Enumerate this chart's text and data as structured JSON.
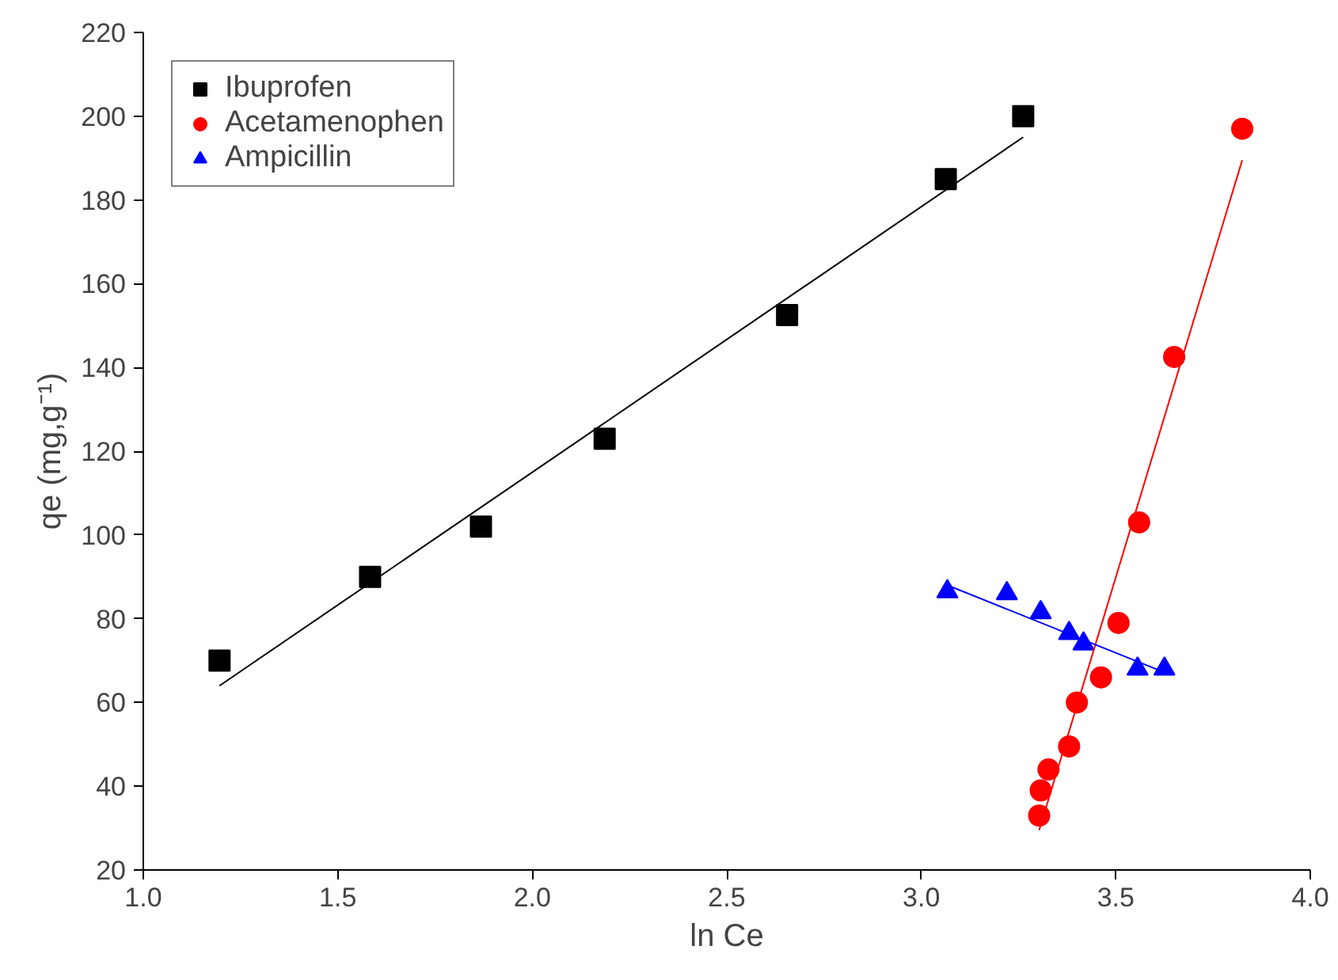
{
  "chart_data": {
    "type": "scatter",
    "xlabel": "ln Ce",
    "ylabel": "qe (mg,g⁻¹)",
    "xlim": [
      1.0,
      4.0
    ],
    "ylim": [
      20,
      220
    ],
    "xticks": [
      {
        "value": 1.0,
        "label": "1.0"
      },
      {
        "value": 1.5,
        "label": "1.5"
      },
      {
        "value": 2.0,
        "label": "2.0"
      },
      {
        "value": 2.5,
        "label": "2.5"
      },
      {
        "value": 3.0,
        "label": "3.0"
      },
      {
        "value": 3.5,
        "label": "3.5"
      },
      {
        "value": 4.0,
        "label": "4.0"
      }
    ],
    "yticks": [
      20,
      40,
      60,
      80,
      100,
      120,
      140,
      160,
      180,
      200,
      220
    ],
    "grid": false,
    "legend": "top left",
    "series": [
      {
        "name": "Ibuprofen",
        "color": "#000000",
        "marker": "square",
        "x": [
          1.196,
          1.583,
          1.868,
          2.186,
          2.655,
          3.063,
          3.262
        ],
        "values": [
          70,
          90,
          102,
          123,
          152.5,
          185,
          200
        ]
      },
      {
        "name": "Acetamenophen",
        "color": "#ff0000",
        "marker": "circle",
        "x": [
          3.303,
          3.307,
          3.327,
          3.38,
          3.4,
          3.462,
          3.507,
          3.56,
          3.65,
          3.825
        ],
        "values": [
          33,
          39,
          44,
          49.5,
          60,
          66,
          79,
          103,
          142.5,
          197
        ]
      },
      {
        "name": "Ampicillin",
        "color": "#0000ff",
        "marker": "triangle",
        "x": [
          3.067,
          3.22,
          3.307,
          3.38,
          3.417,
          3.556,
          3.625
        ],
        "values": [
          86.5,
          86,
          81.5,
          76.5,
          74,
          68,
          68
        ]
      },
      {
        "type": "line",
        "color": "#000000",
        "x": [
          1.196,
          3.262
        ],
        "values": [
          64,
          195
        ]
      },
      {
        "type": "line",
        "color": "#ff0000",
        "x": [
          3.303,
          3.825
        ],
        "values": [
          29.5,
          189.5
        ]
      },
      {
        "type": "line",
        "color": "#0000ff",
        "x": [
          3.067,
          3.63
        ],
        "values": [
          88,
          67
        ]
      }
    ]
  }
}
